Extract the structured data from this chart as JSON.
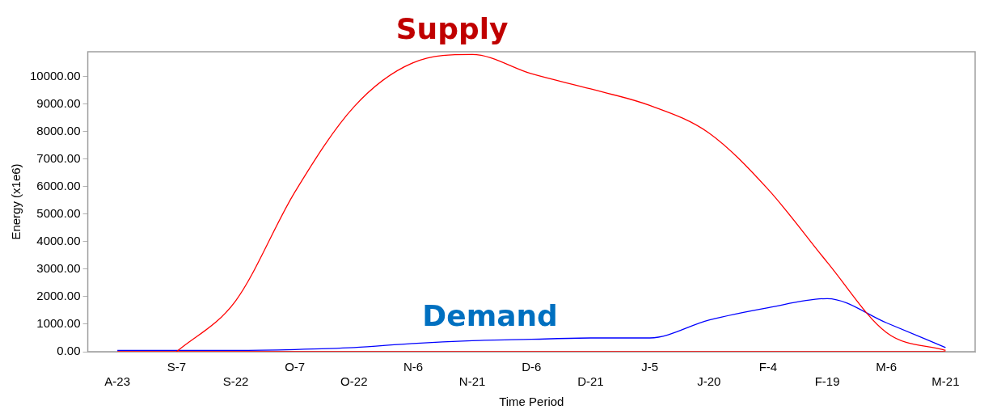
{
  "chart_data": {
    "type": "line",
    "xlabel": "Time Period",
    "ylabel": "Energy (x1e6)",
    "categories": [
      "A-23",
      "S-7",
      "S-22",
      "O-7",
      "O-22",
      "N-6",
      "N-21",
      "D-6",
      "D-21",
      "J-5",
      "J-20",
      "F-4",
      "F-19",
      "M-6",
      "M-21"
    ],
    "series": [
      {
        "name": "Supply",
        "color": "#ff0000",
        "values": [
          null,
          0,
          1850,
          5800,
          8900,
          10500,
          10800,
          10100,
          9550,
          8950,
          7950,
          5900,
          3250,
          700,
          50
        ]
      },
      {
        "name": "Demand",
        "color": "#0000ff",
        "values": [
          50,
          50,
          50,
          80,
          150,
          300,
          400,
          450,
          500,
          500,
          1150,
          1600,
          1930,
          1050,
          150
        ]
      },
      {
        "color": "#ff0000",
        "values": [
          0,
          0,
          0,
          0,
          0,
          0,
          0,
          0,
          0,
          0,
          0,
          0,
          0,
          0,
          0
        ]
      }
    ],
    "ylim": [
      0,
      10900
    ],
    "yticks": [
      {
        "value": 0,
        "label": "0.00"
      },
      {
        "value": 1000,
        "label": "1000.00"
      },
      {
        "value": 2000,
        "label": "2000.00"
      },
      {
        "value": 3000,
        "label": "3000.00"
      },
      {
        "value": 4000,
        "label": "4000.00"
      },
      {
        "value": 5000,
        "label": "5000.00"
      },
      {
        "value": 6000,
        "label": "6000.00"
      },
      {
        "value": 7000,
        "label": "7000.00"
      },
      {
        "value": 8000,
        "label": "8000.00"
      },
      {
        "value": 9000,
        "label": "9000.00"
      },
      {
        "value": 10000,
        "label": "10000.00"
      }
    ],
    "grid": false,
    "legend": false,
    "marker": "none",
    "line_style": "solid"
  }
}
